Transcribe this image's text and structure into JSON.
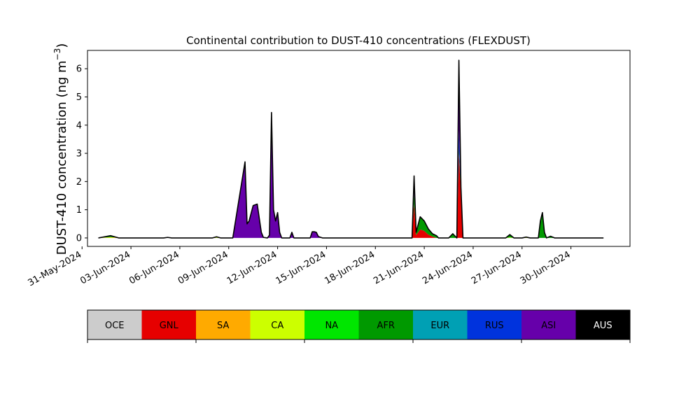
{
  "chart_data": {
    "type": "area",
    "stacked": true,
    "title": "Continental contribution to DUST-410 concentrations (FLEXDUST)",
    "ylabel_main": "DUST-410 concentration (ng m",
    "ylabel_sup": "−3",
    "ylabel_close": ")",
    "xlabel": "",
    "ylim": [
      -0.3,
      6.65
    ],
    "xlim": [
      "2024-05-31T08:00",
      "2024-07-03T15:00"
    ],
    "yticks": [
      0,
      1,
      2,
      3,
      4,
      5,
      6
    ],
    "xticks": [
      {
        "date": "2024-05-31",
        "label": "31-May-2024"
      },
      {
        "date": "2024-06-03",
        "label": "03-Jun-2024"
      },
      {
        "date": "2024-06-06",
        "label": "06-Jun-2024"
      },
      {
        "date": "2024-06-09",
        "label": "09-Jun-2024"
      },
      {
        "date": "2024-06-12",
        "label": "12-Jun-2024"
      },
      {
        "date": "2024-06-15",
        "label": "15-Jun-2024"
      },
      {
        "date": "2024-06-18",
        "label": "18-Jun-2024"
      },
      {
        "date": "2024-06-21",
        "label": "21-Jun-2024"
      },
      {
        "date": "2024-06-24",
        "label": "24-Jun-2024"
      },
      {
        "date": "2024-06-27",
        "label": "27-Jun-2024"
      },
      {
        "date": "2024-06-30",
        "label": "30-Jun-2024"
      }
    ],
    "grid": false,
    "x": [
      "2024-06-01T00:00",
      "2024-06-01T18:00",
      "2024-06-02T00:00",
      "2024-06-02T06:00",
      "2024-06-02T12:00",
      "2024-06-03T00:00",
      "2024-06-05T00:00",
      "2024-06-05T06:00",
      "2024-06-05T12:00",
      "2024-06-07T12:00",
      "2024-06-08T00:00",
      "2024-06-08T06:00",
      "2024-06-08T12:00",
      "2024-06-09T06:00",
      "2024-06-10T00:00",
      "2024-06-10T03:00",
      "2024-06-10T06:00",
      "2024-06-10T12:00",
      "2024-06-10T18:00",
      "2024-06-11T00:00",
      "2024-06-11T03:00",
      "2024-06-11T09:00",
      "2024-06-11T12:00",
      "2024-06-11T15:00",
      "2024-06-11T18:00",
      "2024-06-11T21:00",
      "2024-06-12T00:00",
      "2024-06-12T03:00",
      "2024-06-12T06:00",
      "2024-06-12T12:00",
      "2024-06-12T18:00",
      "2024-06-12T21:00",
      "2024-06-13T00:00",
      "2024-06-13T03:00",
      "2024-06-13T06:00",
      "2024-06-13T12:00",
      "2024-06-13T15:00",
      "2024-06-14T00:00",
      "2024-06-14T03:00",
      "2024-06-14T06:00",
      "2024-06-14T09:00",
      "2024-06-14T12:00",
      "2024-06-14T18:00",
      "2024-06-15T00:00",
      "2024-06-15T12:00",
      "2024-06-20T00:00",
      "2024-06-20T06:00",
      "2024-06-20T09:00",
      "2024-06-20T12:00",
      "2024-06-20T18:00",
      "2024-06-21T00:00",
      "2024-06-21T06:00",
      "2024-06-21T12:00",
      "2024-06-21T18:00",
      "2024-06-21T21:00",
      "2024-06-22T00:00",
      "2024-06-22T06:00",
      "2024-06-22T12:00",
      "2024-06-22T18:00",
      "2024-06-23T00:00",
      "2024-06-23T03:00",
      "2024-06-23T06:00",
      "2024-06-23T09:00",
      "2024-06-23T12:00",
      "2024-06-23T15:00",
      "2024-06-23T18:00",
      "2024-06-23T21:00",
      "2024-06-24T00:00",
      "2024-06-24T06:00",
      "2024-06-24T12:00",
      "2024-06-26T00:00",
      "2024-06-26T06:00",
      "2024-06-26T12:00",
      "2024-06-26T18:00",
      "2024-06-27T00:00",
      "2024-06-27T06:00",
      "2024-06-27T12:00",
      "2024-06-28T00:00",
      "2024-06-28T03:00",
      "2024-06-28T06:00",
      "2024-06-28T09:00",
      "2024-06-28T12:00",
      "2024-06-28T18:00",
      "2024-06-29T00:00",
      "2024-06-29T06:00",
      "2024-06-29T12:00",
      "2024-06-29T18:00",
      "2024-07-02T00:00"
    ],
    "series": [
      {
        "name": "OCE",
        "color": "#cccccc",
        "values": [
          0,
          0,
          0,
          0,
          0,
          0,
          0,
          0,
          0,
          0,
          0,
          0,
          0,
          0,
          0,
          0,
          0,
          0,
          0,
          0,
          0,
          0,
          0,
          0,
          0,
          0,
          0,
          0,
          0,
          0,
          0,
          0,
          0,
          0,
          0,
          0,
          0,
          0,
          0,
          0,
          0,
          0,
          0,
          0,
          0,
          0,
          0,
          0,
          0,
          0,
          0,
          0,
          0,
          0,
          0,
          0,
          0,
          0,
          0,
          0,
          0,
          0,
          0,
          0,
          0,
          0,
          0,
          0,
          0,
          0,
          0,
          0,
          0,
          0,
          0,
          0,
          0,
          0,
          0,
          0,
          0,
          0,
          0,
          0,
          0,
          0,
          0,
          0
        ]
      },
      {
        "name": "GNL",
        "color": "#e60000",
        "values": [
          0,
          0,
          0,
          0,
          0,
          0,
          0,
          0,
          0,
          0,
          0,
          0,
          0,
          0,
          0,
          0,
          0,
          0,
          0,
          0,
          0,
          0,
          0,
          0,
          0,
          0,
          0,
          0,
          0,
          0,
          0,
          0,
          0,
          0,
          0,
          0,
          0,
          0,
          0,
          0,
          0,
          0,
          0,
          0,
          0,
          0,
          0,
          1.2,
          0.1,
          0.3,
          0.25,
          0.12,
          0.05,
          0,
          0,
          0,
          0,
          0,
          0,
          0,
          3.0,
          1.5,
          0,
          0,
          0,
          0,
          0,
          0,
          0,
          0,
          0,
          0,
          0,
          0,
          0,
          0,
          0,
          0,
          0,
          0,
          0,
          0,
          0,
          0,
          0,
          0,
          0,
          0
        ]
      },
      {
        "name": "SA",
        "color": "#ffaa00",
        "values": [
          0,
          0.01,
          0.01,
          0,
          0,
          0,
          0,
          0,
          0,
          0,
          0,
          0,
          0,
          0,
          0,
          0,
          0,
          0,
          0,
          0,
          0,
          0,
          0,
          0,
          0,
          0,
          0,
          0,
          0,
          0,
          0,
          0,
          0,
          0,
          0,
          0,
          0,
          0,
          0,
          0,
          0,
          0,
          0,
          0,
          0,
          0,
          0,
          0,
          0,
          0,
          0,
          0,
          0,
          0,
          0,
          0,
          0,
          0,
          0,
          0,
          0,
          0,
          0,
          0,
          0,
          0,
          0,
          0,
          0,
          0,
          0,
          0,
          0,
          0,
          0,
          0,
          0,
          0,
          0,
          0,
          0,
          0,
          0,
          0,
          0,
          0,
          0,
          0
        ]
      },
      {
        "name": "CA",
        "color": "#ccff00",
        "values": [
          0,
          0.02,
          0.01,
          0,
          0,
          0,
          0,
          0.01,
          0,
          0,
          0,
          0.02,
          0,
          0,
          0,
          0,
          0,
          0,
          0,
          0,
          0,
          0,
          0,
          0,
          0,
          0,
          0,
          0,
          0,
          0,
          0,
          0,
          0,
          0,
          0,
          0,
          0,
          0,
          0,
          0,
          0,
          0,
          0,
          0,
          0,
          0,
          0,
          0,
          0,
          0,
          0,
          0,
          0,
          0,
          0,
          0,
          0,
          0,
          0,
          0,
          0,
          0,
          0,
          0,
          0,
          0,
          0,
          0,
          0,
          0,
          0,
          0.02,
          0,
          0,
          0,
          0.02,
          0,
          0,
          0,
          0,
          0,
          0,
          0,
          0,
          0,
          0,
          0,
          0
        ]
      },
      {
        "name": "NA",
        "color": "#00e600",
        "values": [
          0,
          0,
          0,
          0,
          0,
          0,
          0,
          0,
          0,
          0,
          0,
          0,
          0,
          0,
          0,
          0,
          0,
          0,
          0,
          0,
          0,
          0,
          0,
          0,
          0,
          0,
          0,
          0,
          0,
          0,
          0,
          0,
          0,
          0,
          0,
          0,
          0,
          0,
          0,
          0,
          0,
          0,
          0,
          0,
          0,
          0,
          0,
          0,
          0,
          0,
          0,
          0,
          0,
          0,
          0,
          0,
          0,
          0,
          0,
          0,
          0,
          0,
          0,
          0,
          0,
          0,
          0,
          0,
          0,
          0,
          0,
          0,
          0,
          0,
          0,
          0,
          0,
          0,
          0,
          0,
          0,
          0,
          0,
          0,
          0,
          0,
          0,
          0
        ]
      },
      {
        "name": "AFR",
        "color": "#009900",
        "values": [
          0,
          0.05,
          0.02,
          0,
          0,
          0,
          0,
          0.01,
          0,
          0,
          0,
          0.02,
          0,
          0,
          0,
          0,
          0,
          0,
          0,
          0,
          0,
          0,
          0,
          0,
          0,
          0,
          0,
          0,
          0,
          0,
          0,
          0,
          0,
          0,
          0,
          0,
          0,
          0,
          0,
          0,
          0,
          0,
          0,
          0,
          0,
          0,
          0,
          0.4,
          0.1,
          0.45,
          0.35,
          0.2,
          0.1,
          0.08,
          0,
          0,
          0,
          0,
          0.15,
          0,
          0.2,
          0.1,
          0,
          0,
          0,
          0,
          0,
          0,
          0,
          0,
          0,
          0.1,
          0,
          0,
          0,
          0.01,
          0,
          0,
          0.6,
          0.9,
          0.2,
          0,
          0.06,
          0,
          0,
          0,
          0,
          0
        ]
      },
      {
        "name": "EUR",
        "color": "#00a0b4",
        "values": [
          0,
          0,
          0,
          0,
          0,
          0,
          0,
          0,
          0,
          0,
          0,
          0,
          0,
          0,
          0,
          0,
          0,
          0,
          0,
          0,
          0,
          0,
          0,
          0,
          0,
          0,
          0,
          0,
          0,
          0,
          0,
          0,
          0,
          0,
          0,
          0,
          0,
          0,
          0,
          0,
          0,
          0,
          0,
          0,
          0,
          0,
          0,
          0,
          0,
          0,
          0,
          0,
          0,
          0,
          0,
          0,
          0,
          0,
          0,
          0,
          0,
          0,
          0,
          0,
          0,
          0,
          0,
          0,
          0,
          0,
          0,
          0,
          0,
          0,
          0,
          0,
          0,
          0,
          0,
          0,
          0,
          0,
          0,
          0,
          0,
          0,
          0,
          0
        ]
      },
      {
        "name": "RUS",
        "color": "#0033dd",
        "values": [
          0,
          0,
          0,
          0,
          0,
          0,
          0,
          0,
          0,
          0,
          0,
          0,
          0,
          0,
          0,
          0,
          0,
          0,
          0,
          0,
          0,
          0,
          0,
          0,
          0,
          0,
          0,
          0,
          0,
          0,
          0,
          0,
          0,
          0,
          0,
          0,
          0,
          0,
          0,
          0,
          0,
          0,
          0,
          0,
          0,
          0,
          0,
          0,
          0,
          0,
          0,
          0,
          0,
          0,
          0,
          0,
          0,
          0,
          0,
          0,
          0.6,
          0,
          0,
          0,
          0,
          0,
          0,
          0,
          0,
          0,
          0,
          0,
          0,
          0,
          0,
          0,
          0,
          0,
          0,
          0,
          0,
          0,
          0,
          0,
          0,
          0,
          0,
          0
        ]
      },
      {
        "name": "ASI",
        "color": "#6600aa",
        "values": [
          0,
          0,
          0,
          0,
          0,
          0,
          0,
          0,
          0,
          0,
          0,
          0,
          0,
          0,
          2.7,
          0.5,
          0.6,
          1.15,
          1.2,
          0.2,
          0.02,
          0,
          0.1,
          4.45,
          1.0,
          0.6,
          0.9,
          0.2,
          0,
          0,
          0,
          0.2,
          0,
          0,
          0,
          0,
          0,
          0,
          0.22,
          0.22,
          0.2,
          0.05,
          0,
          0,
          0,
          0,
          0,
          0.6,
          0,
          0,
          0,
          0,
          0,
          0,
          0,
          0,
          0,
          0,
          0,
          0,
          2.5,
          0.2,
          0,
          0,
          0,
          0,
          0,
          0,
          0,
          0,
          0,
          0,
          0,
          0,
          0,
          0,
          0,
          0,
          0,
          0,
          0,
          0,
          0,
          0,
          0,
          0,
          0,
          0
        ]
      },
      {
        "name": "AUS",
        "color": "#000000",
        "values": [
          0,
          0,
          0,
          0,
          0,
          0,
          0,
          0,
          0,
          0,
          0,
          0,
          0,
          0,
          0,
          0,
          0,
          0,
          0,
          0,
          0,
          0,
          0,
          0,
          0,
          0,
          0,
          0,
          0,
          0,
          0,
          0,
          0,
          0,
          0,
          0,
          0,
          0,
          0,
          0,
          0,
          0,
          0,
          0,
          0,
          0,
          0,
          0,
          0,
          0,
          0,
          0,
          0,
          0,
          0,
          0,
          0,
          0,
          0,
          0,
          0,
          0,
          0,
          0,
          0,
          0,
          0,
          0,
          0,
          0,
          0,
          0,
          0,
          0,
          0,
          0,
          0,
          0,
          0,
          0,
          0,
          0,
          0,
          0,
          0,
          0,
          0,
          0
        ]
      }
    ],
    "legend": {
      "placement": "bottom colorbar",
      "items": [
        {
          "label": "OCE",
          "color": "#cccccc",
          "text_color": "#000000"
        },
        {
          "label": "GNL",
          "color": "#e60000",
          "text_color": "#000000"
        },
        {
          "label": "SA",
          "color": "#ffaa00",
          "text_color": "#000000"
        },
        {
          "label": "CA",
          "color": "#ccff00",
          "text_color": "#000000"
        },
        {
          "label": "NA",
          "color": "#00e600",
          "text_color": "#000000"
        },
        {
          "label": "AFR",
          "color": "#009900",
          "text_color": "#000000"
        },
        {
          "label": "EUR",
          "color": "#00a0b4",
          "text_color": "#000000"
        },
        {
          "label": "RUS",
          "color": "#0033dd",
          "text_color": "#000000"
        },
        {
          "label": "ASI",
          "color": "#6600aa",
          "text_color": "#000000"
        },
        {
          "label": "AUS",
          "color": "#000000",
          "text_color": "#ffffff"
        }
      ]
    }
  }
}
